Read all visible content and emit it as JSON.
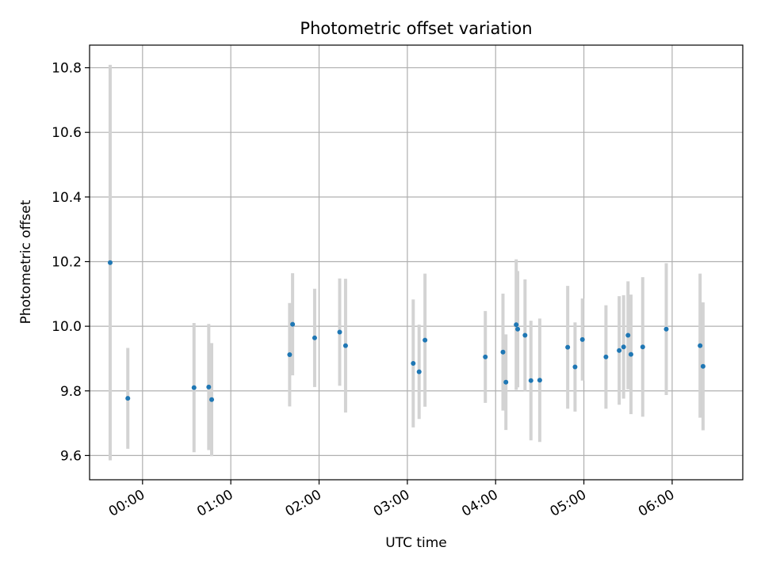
{
  "chart_data": {
    "type": "scatter",
    "title": "Photometric offset variation",
    "xlabel": "UTC time",
    "ylabel": "Photometric offset",
    "xlim": [
      "-00:36",
      "06:48"
    ],
    "ylim": [
      9.525,
      10.87
    ],
    "x_ticks": [
      "00:00",
      "01:00",
      "02:00",
      "03:00",
      "04:00",
      "05:00",
      "06:00"
    ],
    "y_ticks": [
      "9.6",
      "9.8",
      "10.0",
      "10.2",
      "10.4",
      "10.6",
      "10.8"
    ],
    "grid": true,
    "colors": {
      "point": "#1f77b4",
      "errorbar": "#d3d3d3",
      "grid": "#b0b0b0"
    },
    "points": [
      {
        "x": "-00:22",
        "y": 10.197,
        "err": 0.612
      },
      {
        "x": "-00:10",
        "y": 9.777,
        "err": 0.156
      },
      {
        "x": "00:35",
        "y": 9.81,
        "err": 0.2
      },
      {
        "x": "00:45",
        "y": 9.812,
        "err": 0.195
      },
      {
        "x": "00:47",
        "y": 9.773,
        "err": 0.175
      },
      {
        "x": "01:40",
        "y": 9.912,
        "err": 0.16
      },
      {
        "x": "01:42",
        "y": 10.006,
        "err": 0.158
      },
      {
        "x": "01:57",
        "y": 9.964,
        "err": 0.152
      },
      {
        "x": "02:14",
        "y": 9.982,
        "err": 0.166
      },
      {
        "x": "02:18",
        "y": 9.94,
        "err": 0.207
      },
      {
        "x": "03:04",
        "y": 9.885,
        "err": 0.198
      },
      {
        "x": "03:08",
        "y": 9.859,
        "err": 0.146
      },
      {
        "x": "03:12",
        "y": 9.957,
        "err": 0.206
      },
      {
        "x": "03:53",
        "y": 9.905,
        "err": 0.142
      },
      {
        "x": "04:05",
        "y": 9.92,
        "err": 0.181
      },
      {
        "x": "04:07",
        "y": 9.827,
        "err": 0.148
      },
      {
        "x": "04:14",
        "y": 10.005,
        "err": 0.202
      },
      {
        "x": "04:15",
        "y": 9.991,
        "err": 0.18
      },
      {
        "x": "04:20",
        "y": 9.972,
        "err": 0.173
      },
      {
        "x": "04:24",
        "y": 9.832,
        "err": 0.185
      },
      {
        "x": "04:30",
        "y": 9.833,
        "err": 0.191
      },
      {
        "x": "04:49",
        "y": 9.935,
        "err": 0.19
      },
      {
        "x": "04:54",
        "y": 9.874,
        "err": 0.138
      },
      {
        "x": "04:59",
        "y": 9.959,
        "err": 0.127
      },
      {
        "x": "05:15",
        "y": 9.905,
        "err": 0.16
      },
      {
        "x": "05:24",
        "y": 9.925,
        "err": 0.168
      },
      {
        "x": "05:27",
        "y": 9.936,
        "err": 0.16
      },
      {
        "x": "05:30",
        "y": 9.972,
        "err": 0.167
      },
      {
        "x": "05:32",
        "y": 9.913,
        "err": 0.185
      },
      {
        "x": "05:40",
        "y": 9.936,
        "err": 0.216
      },
      {
        "x": "05:56",
        "y": 9.991,
        "err": 0.204
      },
      {
        "x": "06:19",
        "y": 9.94,
        "err": 0.223
      },
      {
        "x": "06:21",
        "y": 9.876,
        "err": 0.198
      }
    ]
  }
}
